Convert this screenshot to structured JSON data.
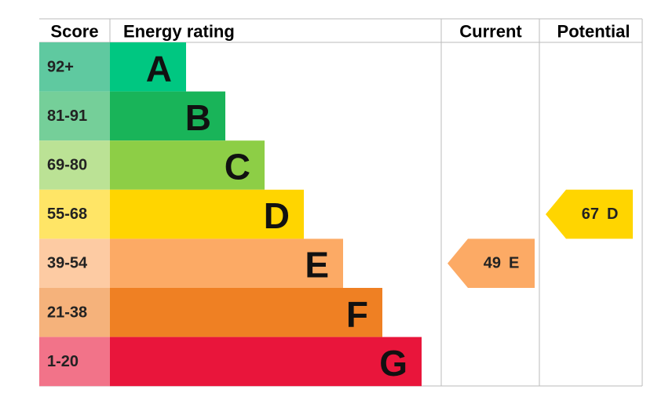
{
  "header": {
    "score": "Score",
    "rating": "Energy rating",
    "current": "Current",
    "potential": "Potential"
  },
  "bands": [
    {
      "score": "92+",
      "letter": "A"
    },
    {
      "score": "81-91",
      "letter": "B"
    },
    {
      "score": "69-80",
      "letter": "C"
    },
    {
      "score": "55-68",
      "letter": "D"
    },
    {
      "score": "39-54",
      "letter": "E"
    },
    {
      "score": "21-38",
      "letter": "F"
    },
    {
      "score": "1-20",
      "letter": "G"
    }
  ],
  "current": {
    "value": 49,
    "letter": "E"
  },
  "potential": {
    "value": 67,
    "letter": "D"
  }
}
